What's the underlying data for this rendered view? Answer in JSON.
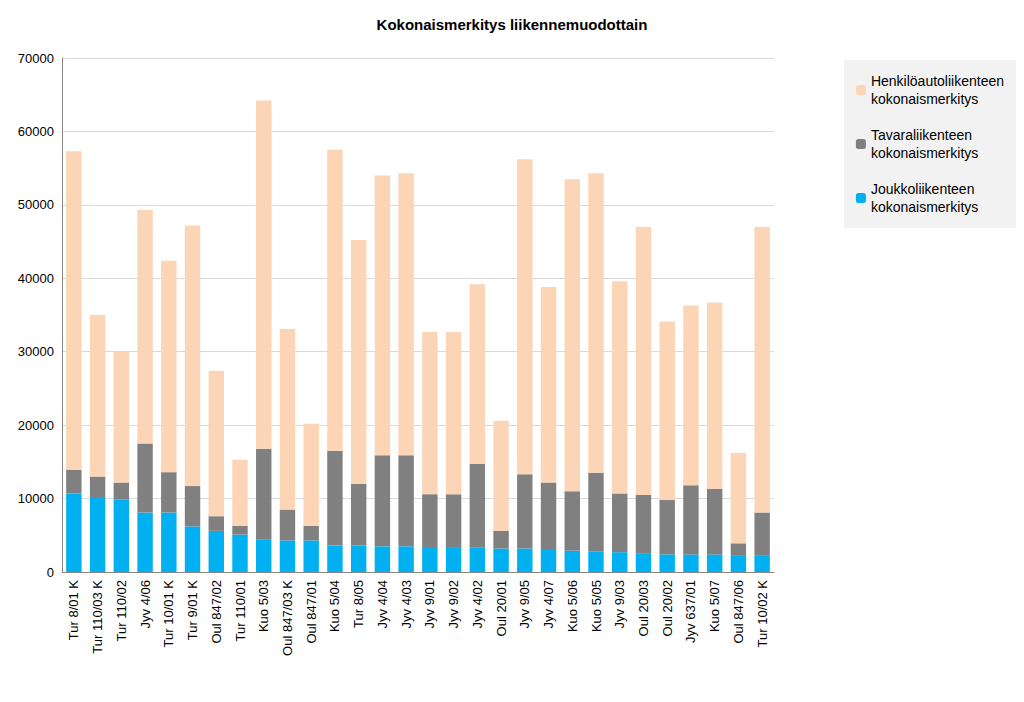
{
  "chart_data": {
    "type": "bar",
    "title": "Kokonaismerkitys liikennemuodottain",
    "categories": [
      "Tur 8/01 K",
      "Tur 110/03 K",
      "Tur 110/02",
      "Jyv 4/06",
      "Tur 10/01 K",
      "Tur 9/01 K",
      "Oul 847/02",
      "Tur 110/01",
      "Kuo 5/03",
      "Oul 847/03 K",
      "Oul 847/01",
      "Kuo 5/04",
      "Tur 8/05",
      "Jyv 4/04",
      "Jyv 4/03",
      "Jyv 9/01",
      "Jyv 9/02",
      "Jyv 4/02",
      "Oul 20/01",
      "Jyv 9/05",
      "Jyv 4/07",
      "Kuo 5/06",
      "Kuo 5/05",
      "Jyv 9/03",
      "Oul 20/03",
      "Oul 20/02",
      "Jyv 637/01",
      "Kuo 5/07",
      "Oul 847/06",
      "Tur 10/02 K"
    ],
    "series": [
      {
        "name": "Joukkoliikenteen kokonaismerkitys",
        "color": "#00b0f0",
        "values": [
          10700,
          10200,
          9900,
          8100,
          8100,
          6200,
          5600,
          5100,
          4400,
          4300,
          4300,
          3600,
          3600,
          3500,
          3500,
          3400,
          3400,
          3300,
          3200,
          3200,
          3000,
          2900,
          2800,
          2700,
          2500,
          2400,
          2400,
          2400,
          2300,
          2200
        ]
      },
      {
        "name": "Tavaraliikenteen kokonaismerkitys",
        "color": "#808080",
        "values": [
          3200,
          2800,
          2300,
          9400,
          5500,
          5500,
          2000,
          1200,
          12400,
          4200,
          2000,
          12900,
          8400,
          12400,
          12400,
          7200,
          7200,
          11400,
          2400,
          10100,
          9200,
          8100,
          10700,
          8000,
          8000,
          7400,
          9400,
          8900,
          1600,
          5900
        ]
      },
      {
        "name": "Henkilöautoliikenteen kokonaismerkitys",
        "color": "#fbd5b5",
        "values": [
          43400,
          22000,
          17800,
          31800,
          28800,
          35500,
          19800,
          9000,
          47400,
          24600,
          13900,
          41000,
          33200,
          38100,
          38400,
          22100,
          22100,
          24500,
          15000,
          42900,
          26600,
          42500,
          40800,
          28900,
          36500,
          24300,
          24500,
          25400,
          12300,
          38900
        ]
      }
    ],
    "ylim": [
      0,
      70000
    ],
    "yticks": [
      0,
      10000,
      20000,
      30000,
      40000,
      50000,
      60000,
      70000
    ],
    "grid": true,
    "stacked": true,
    "legend": "right"
  }
}
